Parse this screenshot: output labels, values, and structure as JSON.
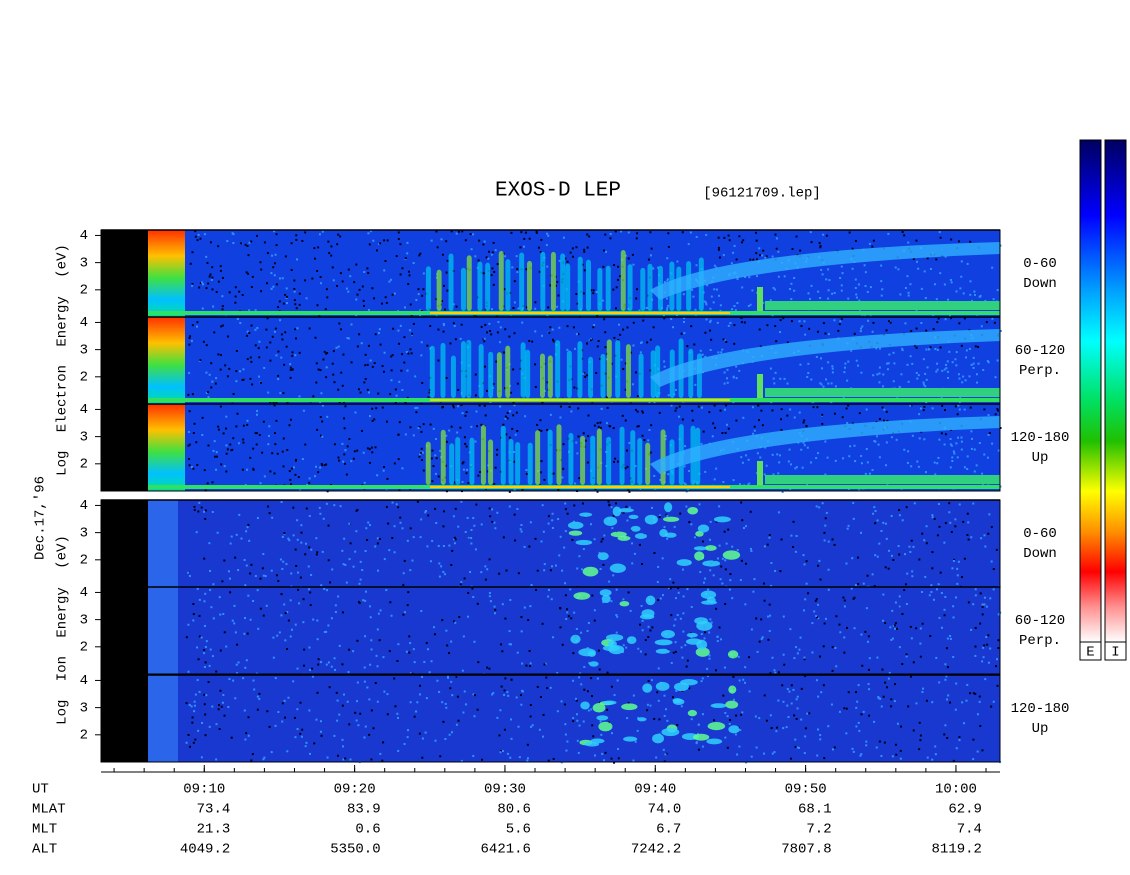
{
  "chart_data": {
    "type": "spectrogram",
    "title": "EXOS-D LEP",
    "file": "[96121709.lep]",
    "date": "Dec.17,'96",
    "electron_axis_label": "Log Electron Energy (eV)",
    "ion_axis_label": "Log Ion Energy (eV)",
    "ylim": [
      1,
      4.2
    ],
    "yticks": [
      2,
      3,
      4
    ],
    "xlim": [
      543.13,
      602.93
    ],
    "xticks": [
      {
        "value": 550,
        "label": "09:10"
      },
      {
        "value": 560,
        "label": "09:20"
      },
      {
        "value": 570,
        "label": "09:30"
      },
      {
        "value": 580,
        "label": "09:40"
      },
      {
        "value": 590,
        "label": "09:50"
      },
      {
        "value": 600,
        "label": "10:00"
      }
    ],
    "panels": [
      {
        "species": "electron",
        "angle": "0-60",
        "direction": "Down"
      },
      {
        "species": "electron",
        "angle": "60-120",
        "direction": "Perp."
      },
      {
        "species": "electron",
        "angle": "120-180",
        "direction": "Up"
      },
      {
        "species": "ion",
        "angle": "0-60",
        "direction": "Down"
      },
      {
        "species": "ion",
        "angle": "60-120",
        "direction": "Perp."
      },
      {
        "species": "ion",
        "angle": "120-180",
        "direction": "Up"
      }
    ],
    "ephemeris": [
      {
        "name": "UT"
      },
      {
        "name": "MLAT",
        "values": [
          "73.4",
          "83.9",
          "80.6",
          "74.0",
          "68.1",
          "62.9"
        ]
      },
      {
        "name": "MLT",
        "values": [
          "21.3",
          "0.6",
          "5.6",
          "6.7",
          "7.2",
          "7.4"
        ]
      },
      {
        "name": "ALT",
        "values": [
          "4049.2",
          "5350.0",
          "6421.6",
          "7242.2",
          "7807.8",
          "8119.2"
        ]
      }
    ],
    "colorbars": [
      "E",
      "I"
    ]
  }
}
